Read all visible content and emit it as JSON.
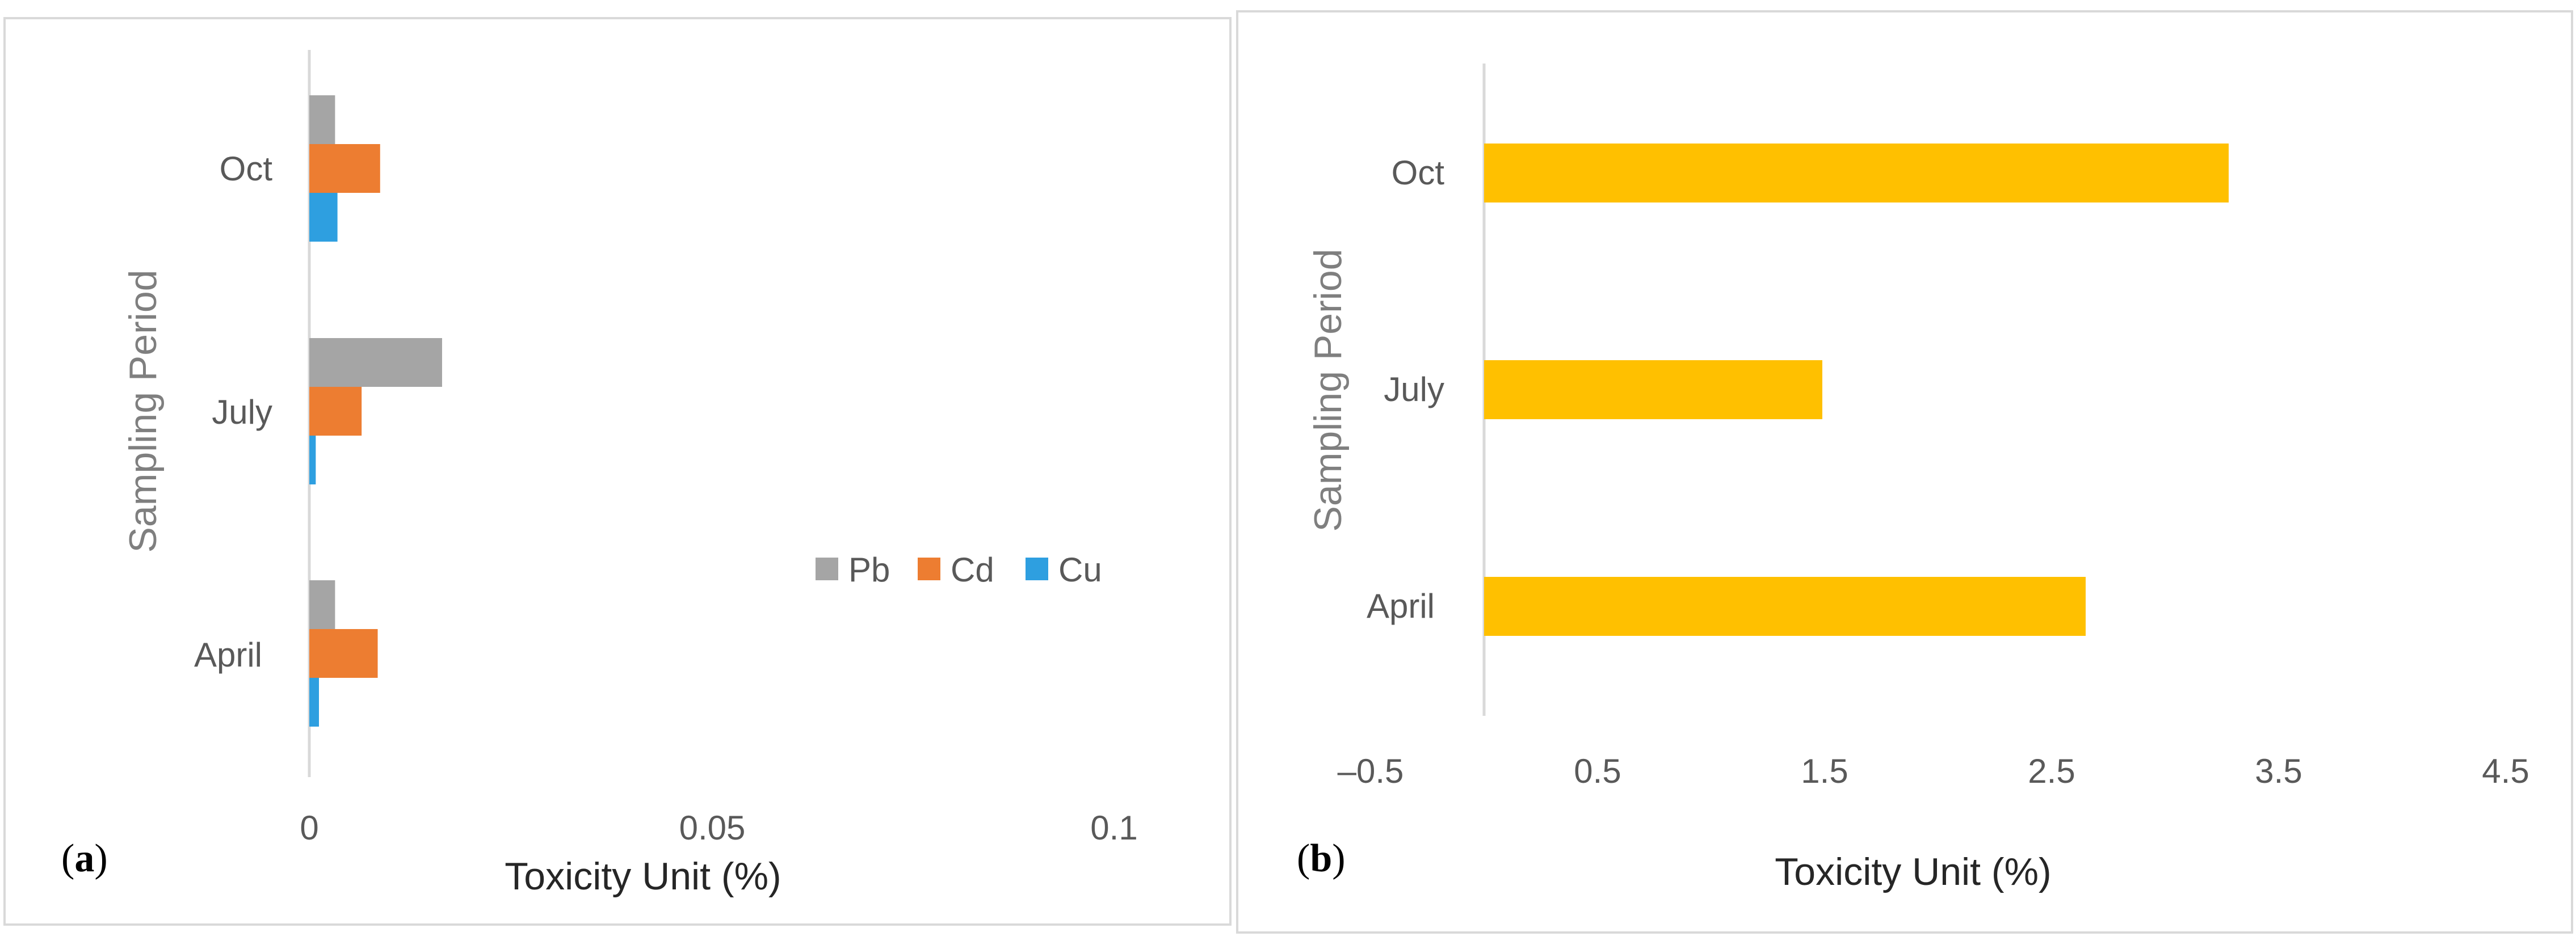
{
  "chart_data": [
    {
      "panel": "(a)",
      "panel_letter": "a",
      "type": "bar",
      "orientation": "horizontal",
      "categories": [
        "April",
        "July",
        "Oct"
      ],
      "series": [
        {
          "name": "Pb",
          "values": [
            0.0032,
            0.0165,
            0.0032
          ],
          "color": "#a5a5a5"
        },
        {
          "name": "Cd",
          "values": [
            0.0085,
            0.0065,
            0.0088
          ],
          "color": "#ed7d31"
        },
        {
          "name": "Cu",
          "values": [
            0.0012,
            0.0008,
            0.0035
          ],
          "color": "#2e9fe0"
        }
      ],
      "xlabel": "Toxicity Unit (%)",
      "ylabel": "Sampling Period",
      "xlim": [
        0,
        0.1
      ],
      "xticks": [
        "0",
        "0.05",
        "0.1"
      ],
      "xtick_values": [
        0,
        0.05,
        0.1
      ],
      "legend_position": "right",
      "grid": false
    },
    {
      "panel": "(b)",
      "panel_letter": "b",
      "type": "bar",
      "orientation": "horizontal",
      "categories": [
        "April",
        "July",
        "Oct"
      ],
      "series": [
        {
          "values": [
            2.65,
            1.49,
            3.28
          ],
          "color": "#ffc000"
        }
      ],
      "xlabel": "Toxicity Unit (%)",
      "ylabel": "Sampling Period",
      "xlim": [
        -0.5,
        4.5
      ],
      "xticks": [
        "–0.5",
        "0.5",
        "1.5",
        "2.5",
        "3.5",
        "4.5"
      ],
      "xtick_values": [
        -0.5,
        0.5,
        1.5,
        2.5,
        3.5,
        4.5
      ],
      "baseline": 0,
      "grid": false
    }
  ]
}
